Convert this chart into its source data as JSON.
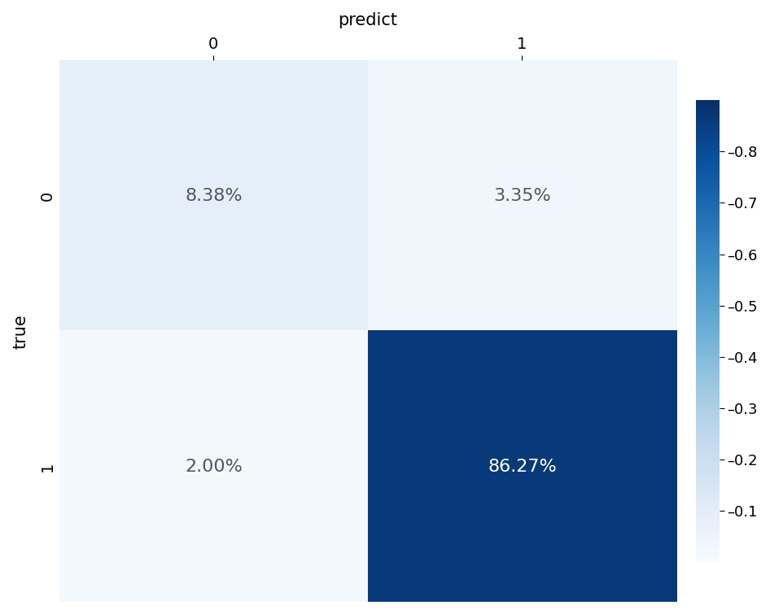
{
  "matrix": [
    [
      0.0838,
      0.0335
    ],
    [
      0.02,
      0.8627
    ]
  ],
  "labels": [
    "0",
    "1"
  ],
  "xlabel": "predict",
  "ylabel": "true",
  "cell_texts": [
    [
      "8.38%",
      "3.35%"
    ],
    [
      "2.00%",
      "86.27%"
    ]
  ],
  "text_colors": [
    [
      "dark",
      "dark"
    ],
    [
      "dark",
      "white"
    ]
  ],
  "colormap": "Blues",
  "vmin": 0.0,
  "vmax": 0.9,
  "label_fontsize": 15,
  "tick_fontsize": 14,
  "cell_fontsize": 16,
  "cbar_ticks": [
    0.1,
    0.2,
    0.3,
    0.4,
    0.5,
    0.6,
    0.7,
    0.8
  ],
  "background_color": "#ffffff"
}
